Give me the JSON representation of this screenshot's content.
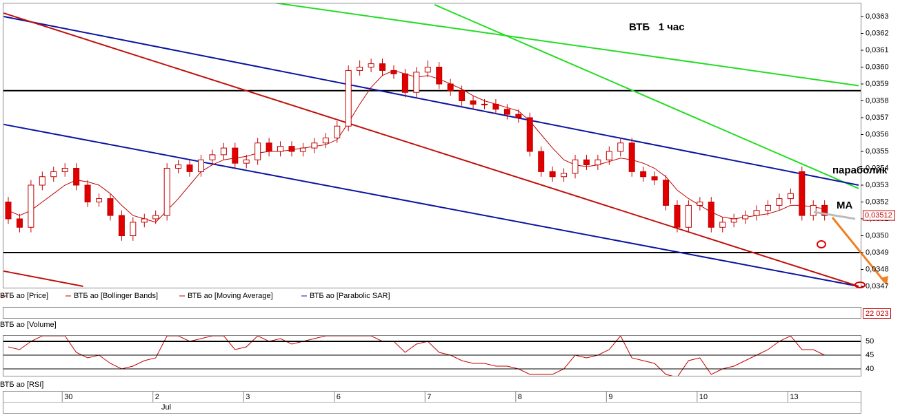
{
  "chart_data": {
    "type": "candlestick",
    "title": "ВТБ   1 час",
    "annotations": [
      "параболик",
      "MA"
    ],
    "legend": [
      "ВТБ ао [Price]",
      "ВТБ ао [Bollinger Bands]",
      "ВТБ ао [Moving Average]",
      "ВТБ ао [Parabolic SAR]"
    ],
    "categories": [
      null,
      null,
      null,
      null,
      null,
      "30",
      null,
      null,
      null,
      null,
      null,
      null,
      null,
      "2",
      null,
      null,
      null,
      null,
      null,
      null,
      null,
      "3",
      null,
      null,
      null,
      null,
      null,
      null,
      null,
      "6",
      null,
      null,
      null,
      null,
      null,
      null,
      null,
      "7",
      null,
      null,
      null,
      null,
      null,
      null,
      null,
      "8",
      null,
      null,
      null,
      null,
      null,
      null,
      null,
      "9",
      null,
      null,
      null,
      null,
      null,
      null,
      null,
      "10",
      null,
      null,
      null,
      null,
      null,
      null,
      null,
      "13",
      null,
      null,
      null
    ],
    "month_label": "Jul",
    "open": [
      0.0352,
      0.0351,
      0.03505,
      0.0353,
      0.03535,
      0.03538,
      0.0354,
      0.0353,
      0.0352,
      0.03522,
      0.03512,
      0.035,
      0.03508,
      0.0351,
      0.03512,
      0.0354,
      0.03542,
      0.03538,
      0.03545,
      0.03548,
      0.03552,
      0.03543,
      0.03545,
      0.03555,
      0.0355,
      0.03553,
      0.0355,
      0.03552,
      0.03555,
      0.03558,
      0.03565,
      0.03598,
      0.036,
      0.03602,
      0.03598,
      0.03596,
      0.03585,
      0.03597,
      0.036,
      0.0359,
      0.03586,
      0.0358,
      0.03578,
      0.03578,
      0.03575,
      0.03572,
      0.0357,
      0.0355,
      0.03538,
      0.03535,
      0.03537,
      0.03545,
      0.03542,
      0.03545,
      0.0355,
      0.03555,
      0.03538,
      0.03535,
      0.03533,
      0.03518,
      0.03505,
      0.03518,
      0.0352,
      0.03505,
      0.03508,
      0.0351,
      0.03512,
      0.03515,
      0.03518,
      0.03522,
      0.03538,
      0.03512,
      0.03518
    ],
    "high": [
      0.03523,
      0.03513,
      0.03533,
      0.03538,
      0.03541,
      0.03543,
      0.03543,
      0.03533,
      0.03525,
      0.03525,
      0.03515,
      0.03511,
      0.03513,
      0.03515,
      0.03543,
      0.03545,
      0.03545,
      0.03548,
      0.03551,
      0.03555,
      0.03555,
      0.03548,
      0.03558,
      0.03558,
      0.03556,
      0.03556,
      0.03555,
      0.03558,
      0.03561,
      0.03568,
      0.03601,
      0.03604,
      0.03605,
      0.03605,
      0.03601,
      0.03599,
      0.036,
      0.03604,
      0.03603,
      0.03593,
      0.03589,
      0.03583,
      0.03581,
      0.03581,
      0.03578,
      0.03575,
      0.03573,
      0.03553,
      0.03541,
      0.0354,
      0.03548,
      0.03548,
      0.03548,
      0.03553,
      0.03558,
      0.03558,
      0.03541,
      0.03538,
      0.03536,
      0.03521,
      0.03521,
      0.03523,
      0.03523,
      0.03511,
      0.03513,
      0.03515,
      0.03518,
      0.03521,
      0.03525,
      0.03528,
      0.03541,
      0.03521,
      0.03521
    ],
    "low": [
      0.03507,
      0.03502,
      0.03502,
      0.03527,
      0.03532,
      0.03535,
      0.03527,
      0.03517,
      0.03517,
      0.03509,
      0.03497,
      0.03497,
      0.03505,
      0.03507,
      0.03509,
      0.03537,
      0.03535,
      0.03535,
      0.03542,
      0.03545,
      0.0354,
      0.0354,
      0.03542,
      0.03547,
      0.03547,
      0.03547,
      0.03547,
      0.03549,
      0.03552,
      0.03555,
      0.03562,
      0.03595,
      0.03597,
      0.03595,
      0.03593,
      0.03582,
      0.03582,
      0.03594,
      0.03587,
      0.03583,
      0.03577,
      0.03575,
      0.03575,
      0.03572,
      0.03569,
      0.03567,
      0.03547,
      0.03535,
      0.03532,
      0.03532,
      0.03534,
      0.03539,
      0.03539,
      0.03542,
      0.03547,
      0.03535,
      0.03532,
      0.0353,
      0.03515,
      0.03502,
      0.03502,
      0.03515,
      0.03502,
      0.03502,
      0.03505,
      0.03507,
      0.03509,
      0.03512,
      0.03515,
      0.03519,
      0.03509,
      0.03509,
      0.03509
    ],
    "close": [
      0.0351,
      0.03505,
      0.0353,
      0.03535,
      0.03538,
      0.0354,
      0.0353,
      0.0352,
      0.03522,
      0.03512,
      0.035,
      0.03508,
      0.0351,
      0.03512,
      0.0354,
      0.03542,
      0.03538,
      0.03545,
      0.03548,
      0.03552,
      0.03543,
      0.03545,
      0.03555,
      0.0355,
      0.03553,
      0.0355,
      0.03552,
      0.03555,
      0.03558,
      0.03565,
      0.03598,
      0.036,
      0.03602,
      0.03598,
      0.03596,
      0.03585,
      0.03597,
      0.036,
      0.0359,
      0.03586,
      0.0358,
      0.03578,
      0.03578,
      0.03575,
      0.03572,
      0.0357,
      0.0355,
      0.03538,
      0.03535,
      0.03537,
      0.03545,
      0.03542,
      0.03545,
      0.0355,
      0.03555,
      0.03538,
      0.03535,
      0.03533,
      0.03518,
      0.03505,
      0.03518,
      0.0352,
      0.03505,
      0.03508,
      0.0351,
      0.03512,
      0.03515,
      0.03518,
      0.03522,
      0.03525,
      0.03512,
      0.03518,
      0.03512
    ],
    "up_color": "#ffffff",
    "down_color": "#e00000",
    "candle_edge": "#c00000",
    "ma": {
      "color": "#c00000",
      "values": [
        0.03515,
        0.03512,
        0.03515,
        0.0352,
        0.03525,
        0.0353,
        0.03533,
        0.03532,
        0.0353,
        0.03525,
        0.03518,
        0.03512,
        0.0351,
        0.03508,
        0.03515,
        0.03522,
        0.0353,
        0.03538,
        0.03542,
        0.03545,
        0.03546,
        0.03547,
        0.03549,
        0.0355,
        0.0355,
        0.03551,
        0.03552,
        0.03553,
        0.03554,
        0.03557,
        0.03567,
        0.03578,
        0.03588,
        0.03595,
        0.03598,
        0.03596,
        0.03594,
        0.03595,
        0.03593,
        0.0359,
        0.03587,
        0.03583,
        0.0358,
        0.03578,
        0.03576,
        0.03574,
        0.03568,
        0.0356,
        0.03552,
        0.03545,
        0.03542,
        0.03541,
        0.03542,
        0.03544,
        0.03546,
        0.03545,
        0.03543,
        0.0354,
        0.03535,
        0.03527,
        0.03522,
        0.03518,
        0.03514,
        0.03511,
        0.0351,
        0.03511,
        0.03512,
        0.03513,
        0.03515,
        0.03518,
        0.03518,
        0.03517,
        0.03516
      ]
    },
    "trendlines": [
      {
        "color": "#22dd22",
        "start": [
          23.6,
          0.03638
        ],
        "end": [
          75,
          0.03589
        ]
      },
      {
        "color": "#22dd22",
        "start": [
          37.6,
          0.03637
        ],
        "end": [
          75,
          0.03528
        ]
      },
      {
        "color": "#0a14a0",
        "start": [
          -0.4,
          0.0363
        ],
        "end": [
          75,
          0.0353
        ]
      },
      {
        "color": "#0a14a0",
        "start": [
          -0.4,
          0.03566
        ],
        "end": [
          75,
          0.0347
        ]
      },
      {
        "color": "#c0100c",
        "start": [
          -0.4,
          0.03632
        ],
        "end": [
          75,
          0.0347
        ]
      },
      {
        "color": "#c0100c",
        "start": [
          -0.4,
          0.03479
        ],
        "end": [
          6.6,
          0.0347
        ]
      }
    ],
    "levels": [
      0.03586,
      0.0349
    ],
    "ylim": [
      0.0347,
      0.0363
    ],
    "yticks": [
      {
        "value": 0.0347,
        "label": "0,0347"
      },
      {
        "value": 0.0348,
        "label": "0,0348"
      },
      {
        "value": 0.0349,
        "label": "0,0349"
      },
      {
        "value": 0.035,
        "label": "0,0350"
      },
      {
        "value": 0.0351,
        "label": "0,0351"
      },
      {
        "value": 0.0352,
        "label": "0,0352"
      },
      {
        "value": 0.0353,
        "label": "0,0353"
      },
      {
        "value": 0.0354,
        "label": "0,0354"
      },
      {
        "value": 0.0355,
        "label": "0,0355"
      },
      {
        "value": 0.0356,
        "label": "0,0356"
      },
      {
        "value": 0.0357,
        "label": "0,0357"
      },
      {
        "value": 0.0358,
        "label": "0,0358"
      },
      {
        "value": 0.0359,
        "label": "0,0359"
      },
      {
        "value": 0.036,
        "label": "0,0360"
      },
      {
        "value": 0.0361,
        "label": "0,0361"
      },
      {
        "value": 0.0362,
        "label": "0,0362"
      },
      {
        "value": 0.0363,
        "label": "0,0363"
      }
    ],
    "last_price_label": "0,03512",
    "volume": {
      "label": "ВТБ ао [Volume]",
      "last_label": "22 023"
    },
    "rsi": {
      "label": "ВТБ ао [RSI]",
      "color": "#c00000",
      "ylim": [
        38,
        52
      ],
      "yticks": [
        50,
        45,
        40
      ],
      "values": [
        48,
        47,
        50,
        52,
        52,
        52,
        46,
        44,
        45,
        42,
        40,
        41,
        43,
        44,
        52,
        52,
        50,
        51,
        52,
        52,
        47,
        48,
        52,
        50,
        51,
        49,
        50,
        51,
        52,
        52,
        52,
        52,
        52,
        50,
        50,
        46,
        49,
        50,
        46,
        45,
        43,
        42,
        42,
        41,
        41,
        40,
        38,
        38,
        38,
        40,
        45,
        44,
        45,
        47,
        52,
        44,
        43,
        42,
        38,
        37,
        43,
        44,
        38,
        40,
        41,
        43,
        45,
        47,
        50,
        52,
        47,
        47,
        45
      ]
    }
  }
}
